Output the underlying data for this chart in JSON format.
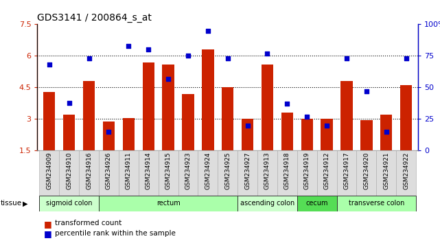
{
  "title": "GDS3141 / 200864_s_at",
  "samples": [
    "GSM234909",
    "GSM234910",
    "GSM234916",
    "GSM234926",
    "GSM234911",
    "GSM234914",
    "GSM234915",
    "GSM234923",
    "GSM234924",
    "GSM234925",
    "GSM234927",
    "GSM234913",
    "GSM234918",
    "GSM234919",
    "GSM234912",
    "GSM234917",
    "GSM234920",
    "GSM234921",
    "GSM234922"
  ],
  "bar_values": [
    4.3,
    3.2,
    4.8,
    2.9,
    3.05,
    5.7,
    5.6,
    4.2,
    6.3,
    4.5,
    3.0,
    5.6,
    3.3,
    3.0,
    3.0,
    4.8,
    2.95,
    3.2,
    4.6
  ],
  "dot_values": [
    68,
    38,
    73,
    15,
    83,
    80,
    57,
    75,
    95,
    73,
    20,
    77,
    37,
    27,
    20,
    73,
    47,
    15,
    73
  ],
  "bar_color": "#cc2200",
  "dot_color": "#0000cc",
  "ylim_left": [
    1.5,
    7.5
  ],
  "ylim_right": [
    0,
    100
  ],
  "yticks_left": [
    1.5,
    3.0,
    4.5,
    6.0,
    7.5
  ],
  "yticks_right": [
    0,
    25,
    50,
    75,
    100
  ],
  "ytick_labels_left": [
    "1.5",
    "3",
    "4.5",
    "6",
    "7.5"
  ],
  "ytick_labels_right": [
    "0",
    "25",
    "50",
    "75",
    "100%"
  ],
  "hlines": [
    3.0,
    4.5,
    6.0
  ],
  "tissue_groups": [
    {
      "label": "sigmoid colon",
      "start": 0,
      "end": 3,
      "color": "#ccffcc"
    },
    {
      "label": "rectum",
      "start": 3,
      "end": 10,
      "color": "#aaffaa"
    },
    {
      "label": "ascending colon",
      "start": 10,
      "end": 13,
      "color": "#ccffcc"
    },
    {
      "label": "cecum",
      "start": 13,
      "end": 15,
      "color": "#55dd55"
    },
    {
      "label": "transverse colon",
      "start": 15,
      "end": 19,
      "color": "#aaffaa"
    }
  ],
  "tissue_label": "tissue",
  "legend_bar_label": "transformed count",
  "legend_dot_label": "percentile rank within the sample"
}
